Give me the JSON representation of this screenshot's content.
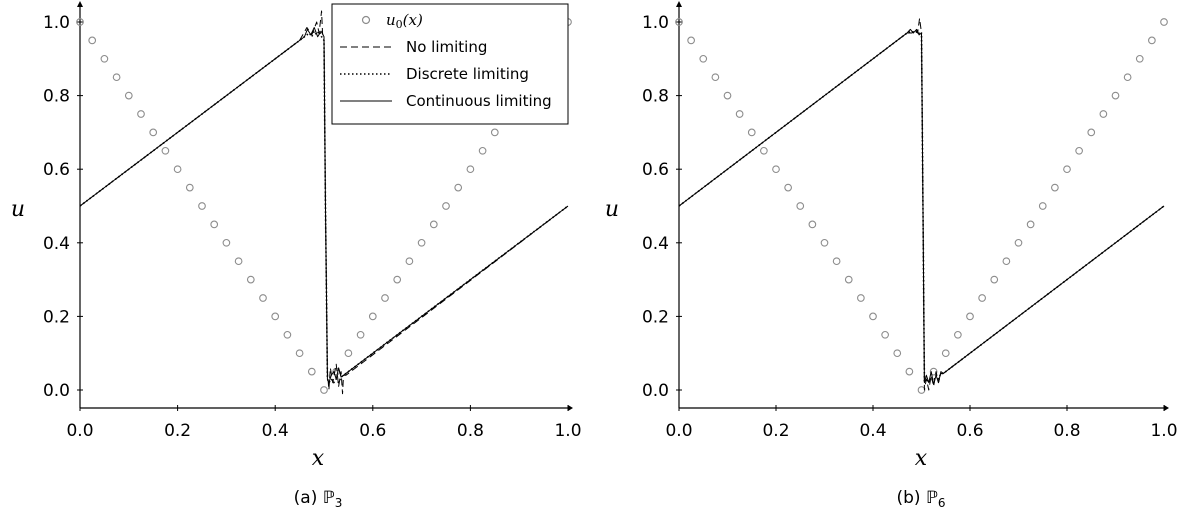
{
  "chart_data": [
    {
      "type": "line",
      "caption": "(a) ℙ₃",
      "xlabel": "x",
      "ylabel": "u",
      "xlim": [
        0.0,
        1.0
      ],
      "ylim": [
        -0.02,
        1.02
      ],
      "xticks": [
        "0.0",
        "0.2",
        "0.4",
        "0.6",
        "0.8",
        "1.0"
      ],
      "yticks": [
        "0.0",
        "0.2",
        "0.4",
        "0.6",
        "0.8",
        "1.0"
      ],
      "grid": false,
      "legend": {
        "placement": "top-right",
        "entries": [
          {
            "label": "u0(x)",
            "style": "circle-markers"
          },
          {
            "label": "No limiting",
            "style": "dashed"
          },
          {
            "label": "Discrete limiting",
            "style": "dotted"
          },
          {
            "label": "Continuous limiting",
            "style": "solid"
          }
        ]
      },
      "series": [
        {
          "name": "u0(x)",
          "x": [
            0.0,
            0.025,
            0.05,
            0.075,
            0.1,
            0.125,
            0.15,
            0.175,
            0.2,
            0.225,
            0.25,
            0.275,
            0.3,
            0.325,
            0.35,
            0.375,
            0.4,
            0.425,
            0.45,
            0.475,
            0.5,
            0.525,
            0.55,
            0.575,
            0.6,
            0.625,
            0.65,
            0.675,
            0.7,
            0.725,
            0.75,
            0.775,
            0.8,
            0.825,
            0.85,
            0.875,
            0.9,
            0.925,
            0.95,
            0.975,
            1.0
          ],
          "y": [
            1.0,
            0.95,
            0.9,
            0.85,
            0.8,
            0.75,
            0.7,
            0.65,
            0.6,
            0.55,
            0.5,
            0.45,
            0.4,
            0.35,
            0.3,
            0.25,
            0.2,
            0.15,
            0.1,
            0.05,
            0.0,
            0.05,
            0.1,
            0.15,
            0.2,
            0.25,
            0.3,
            0.35,
            0.4,
            0.45,
            0.5,
            0.55,
            0.6,
            0.65,
            0.7,
            0.75,
            0.8,
            0.85,
            0.9,
            0.95,
            1.0
          ]
        },
        {
          "name": "No limiting",
          "x": [
            0.0,
            0.45,
            0.465,
            0.475,
            0.485,
            0.49,
            0.495,
            0.497,
            0.5,
            0.503,
            0.507,
            0.51,
            0.513,
            0.518,
            0.525,
            0.53,
            0.535,
            0.538,
            0.54,
            0.545,
            1.0
          ],
          "y": [
            0.5,
            0.95,
            0.985,
            0.965,
            1.0,
            0.97,
            1.03,
            0.97,
            0.95,
            0.5,
            0.05,
            0.0,
            0.06,
            0.02,
            0.07,
            0.01,
            0.05,
            -0.01,
            0.04,
            0.04,
            0.5
          ]
        },
        {
          "name": "Discrete limiting",
          "x": [
            0.0,
            0.47,
            0.475,
            0.48,
            0.485,
            0.49,
            0.495,
            0.5,
            0.503,
            0.507,
            0.51,
            0.515,
            0.52,
            0.525,
            0.53,
            0.535,
            0.54,
            0.545,
            1.0
          ],
          "y": [
            0.5,
            0.97,
            0.96,
            0.975,
            0.965,
            0.975,
            0.96,
            0.95,
            0.5,
            0.03,
            0.02,
            0.03,
            0.02,
            0.03,
            0.02,
            0.035,
            0.04,
            0.045,
            0.5
          ]
        },
        {
          "name": "Continuous limiting",
          "x": [
            0.0,
            0.46,
            0.466,
            0.473,
            0.48,
            0.487,
            0.494,
            0.5,
            0.503,
            0.507,
            0.51,
            0.515,
            0.52,
            0.525,
            0.53,
            0.535,
            0.54,
            0.545,
            1.0
          ],
          "y": [
            0.5,
            0.96,
            0.98,
            0.965,
            0.985,
            0.96,
            0.975,
            0.96,
            0.5,
            0.03,
            0.02,
            0.04,
            0.05,
            0.03,
            0.06,
            0.035,
            0.04,
            0.045,
            0.5
          ]
        }
      ]
    },
    {
      "type": "line",
      "caption": "(b) ℙ₆",
      "xlabel": "x",
      "ylabel": "u",
      "xlim": [
        0.0,
        1.0
      ],
      "ylim": [
        -0.02,
        1.02
      ],
      "xticks": [
        "0.0",
        "0.2",
        "0.4",
        "0.6",
        "0.8",
        "1.0"
      ],
      "yticks": [
        "0.0",
        "0.2",
        "0.4",
        "0.6",
        "0.8",
        "1.0"
      ],
      "grid": false,
      "series": [
        {
          "name": "u0(x)",
          "x": [
            0.0,
            0.025,
            0.05,
            0.075,
            0.1,
            0.125,
            0.15,
            0.175,
            0.2,
            0.225,
            0.25,
            0.275,
            0.3,
            0.325,
            0.35,
            0.375,
            0.4,
            0.425,
            0.45,
            0.475,
            0.5,
            0.525,
            0.55,
            0.575,
            0.6,
            0.625,
            0.65,
            0.675,
            0.7,
            0.725,
            0.75,
            0.775,
            0.8,
            0.825,
            0.85,
            0.875,
            0.9,
            0.925,
            0.95,
            0.975,
            1.0
          ],
          "y": [
            1.0,
            0.95,
            0.9,
            0.85,
            0.8,
            0.75,
            0.7,
            0.65,
            0.6,
            0.55,
            0.5,
            0.45,
            0.4,
            0.35,
            0.3,
            0.25,
            0.2,
            0.15,
            0.1,
            0.05,
            0.0,
            0.05,
            0.1,
            0.15,
            0.2,
            0.25,
            0.3,
            0.35,
            0.4,
            0.45,
            0.5,
            0.55,
            0.6,
            0.65,
            0.7,
            0.75,
            0.8,
            0.85,
            0.9,
            0.95,
            1.0
          ]
        },
        {
          "name": "No limiting",
          "x": [
            0.0,
            0.47,
            0.48,
            0.487,
            0.492,
            0.496,
            0.5,
            0.503,
            0.506,
            0.51,
            0.515,
            0.52,
            0.525,
            0.53,
            0.535,
            0.54,
            0.545,
            1.0
          ],
          "y": [
            0.5,
            0.97,
            0.97,
            0.98,
            0.97,
            1.01,
            0.97,
            0.5,
            0.0,
            0.03,
            0.0,
            0.04,
            0.01,
            0.05,
            0.02,
            0.045,
            0.045,
            0.5
          ]
        },
        {
          "name": "Discrete limiting",
          "x": [
            0.0,
            0.47,
            0.48,
            0.487,
            0.492,
            0.497,
            0.5,
            0.503,
            0.506,
            0.51,
            0.515,
            0.52,
            0.525,
            0.53,
            0.535,
            0.54,
            0.545,
            1.0
          ],
          "y": [
            0.5,
            0.97,
            0.975,
            0.97,
            0.975,
            0.965,
            0.97,
            0.5,
            0.02,
            0.03,
            0.02,
            0.03,
            0.025,
            0.04,
            0.03,
            0.045,
            0.045,
            0.5
          ]
        },
        {
          "name": "Continuous limiting",
          "x": [
            0.0,
            0.47,
            0.477,
            0.483,
            0.49,
            0.495,
            0.5,
            0.503,
            0.506,
            0.51,
            0.515,
            0.52,
            0.525,
            0.53,
            0.535,
            0.54,
            0.545,
            1.0
          ],
          "y": [
            0.5,
            0.97,
            0.98,
            0.97,
            0.98,
            0.965,
            0.97,
            0.5,
            0.02,
            0.04,
            0.02,
            0.05,
            0.015,
            0.04,
            0.02,
            0.05,
            0.045,
            0.5
          ]
        }
      ]
    }
  ],
  "captions": {
    "a_prefix": "(a) ",
    "a_symbol": "ℙ",
    "a_sub": "3",
    "b_prefix": "(b) ",
    "b_symbol": "ℙ",
    "b_sub": "6"
  },
  "legend_labels": {
    "u0_main": "u",
    "u0_sub": "0",
    "u0_arg": "(x)",
    "no_limiting": "No limiting",
    "discrete": "Discrete limiting",
    "continuous": "Continuous limiting"
  },
  "colors": {
    "marker": "#8c8c8c",
    "line": "#000000"
  }
}
